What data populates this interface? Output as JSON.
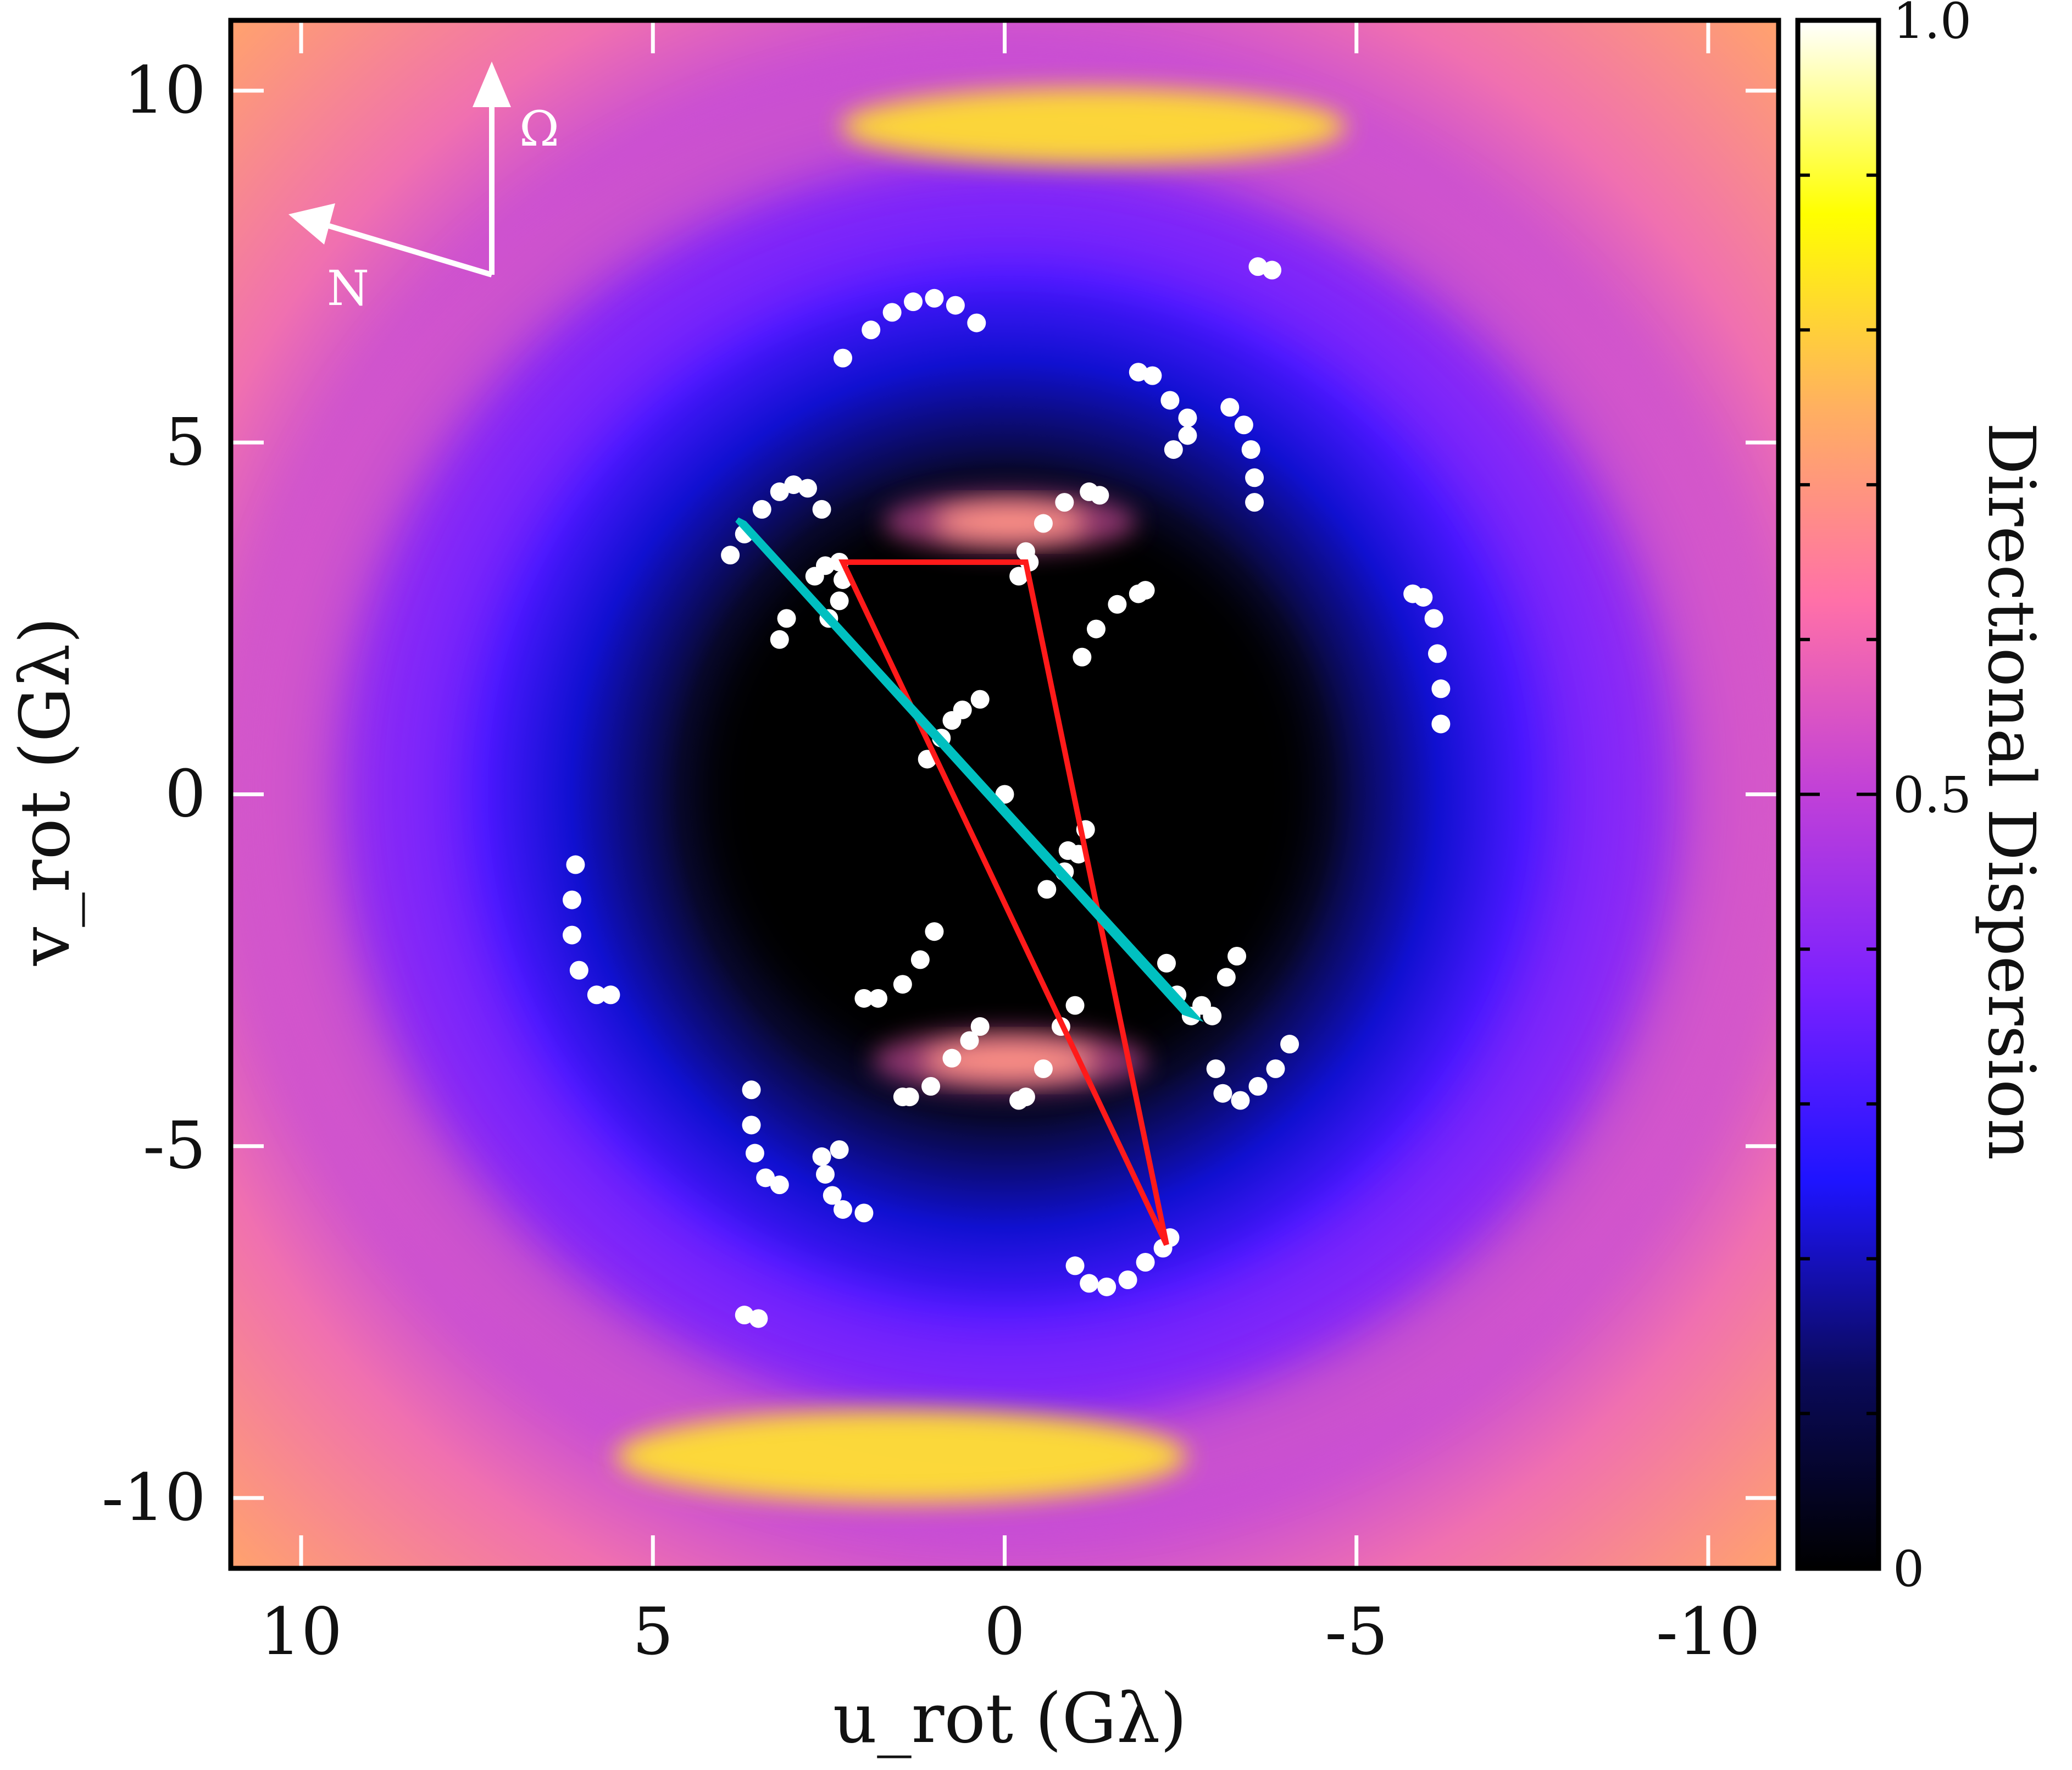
{
  "chart_data": {
    "type": "heatmap",
    "title": "",
    "xlabel": "u_rot (Gλ)",
    "ylabel": "v_rot (Gλ)",
    "xlim": [
      11,
      -11
    ],
    "ylim": [
      -11,
      11
    ],
    "x_ticks": [
      10,
      5,
      0,
      -5,
      -10
    ],
    "y_ticks": [
      10,
      5,
      0,
      -5,
      -10
    ],
    "x_tick_labels": [
      "10",
      "5",
      "0",
      "-5",
      "-10"
    ],
    "y_tick_labels": [
      "10",
      "5",
      "0",
      "-5",
      "-10"
    ],
    "grid": false,
    "colorbar": {
      "label": "Directional Dispersion",
      "range": [
        0,
        1
      ],
      "tick_values": [
        0,
        0.5,
        1.0
      ],
      "tick_labels": [
        "0",
        "0.5",
        "1.0"
      ],
      "colors": [
        "#000000",
        "#0a0a5a",
        "#1e14ff",
        "#7a20ff",
        "#c040d8",
        "#ff70a8",
        "#ffb060",
        "#ffff00",
        "#ffffff"
      ]
    },
    "compass": {
      "north_label": "N",
      "spin_label": "Ω"
    },
    "uv_tracks": [
      [
        [
          2.3,
          6.2
        ],
        [
          1.9,
          6.6
        ],
        [
          1.6,
          6.85
        ],
        [
          1.3,
          7.0
        ],
        [
          1.0,
          7.05
        ],
        [
          0.7,
          6.95
        ],
        [
          0.4,
          6.7
        ]
      ],
      [
        [
          -3.6,
          7.5
        ],
        [
          -3.8,
          7.45
        ]
      ],
      [
        [
          -1.9,
          6.0
        ],
        [
          -2.1,
          5.95
        ],
        [
          -2.35,
          5.6
        ],
        [
          -2.6,
          5.35
        ],
        [
          -2.6,
          5.1
        ],
        [
          -2.4,
          4.9
        ]
      ],
      [
        [
          -3.2,
          5.5
        ],
        [
          -3.4,
          5.25
        ],
        [
          -3.5,
          4.9
        ],
        [
          -3.55,
          4.5
        ],
        [
          -3.55,
          4.15
        ]
      ],
      [
        [
          3.9,
          3.4
        ],
        [
          3.7,
          3.7
        ],
        [
          3.45,
          4.05
        ],
        [
          3.2,
          4.3
        ],
        [
          3.0,
          4.4
        ],
        [
          2.8,
          4.35
        ],
        [
          2.6,
          4.05
        ]
      ],
      [
        [
          -0.3,
          3.45
        ],
        [
          -0.55,
          3.85
        ],
        [
          -0.85,
          4.15
        ],
        [
          -1.2,
          4.3
        ],
        [
          -1.35,
          4.25
        ]
      ],
      [
        [
          2.7,
          3.1
        ],
        [
          2.55,
          3.25
        ],
        [
          2.35,
          3.3
        ],
        [
          2.3,
          3.05
        ],
        [
          2.35,
          2.75
        ],
        [
          2.5,
          2.5
        ]
      ],
      [
        [
          3.2,
          2.2
        ],
        [
          3.1,
          2.5
        ]
      ],
      [
        [
          -0.2,
          3.1
        ],
        [
          -0.35,
          3.3
        ]
      ],
      [
        [
          -1.1,
          1.95
        ],
        [
          -1.3,
          2.35
        ],
        [
          -1.6,
          2.7
        ],
        [
          -2.0,
          2.9
        ],
        [
          -1.9,
          2.85
        ]
      ],
      [
        [
          -5.8,
          2.85
        ],
        [
          -5.95,
          2.8
        ],
        [
          -6.1,
          2.5
        ],
        [
          -6.15,
          2.0
        ],
        [
          -6.2,
          1.5
        ],
        [
          -6.2,
          1.0
        ]
      ],
      [
        [
          1.1,
          0.5
        ],
        [
          0.9,
          0.8
        ],
        [
          0.75,
          1.05
        ],
        [
          0.6,
          1.2
        ],
        [
          0.35,
          1.35
        ]
      ],
      [
        [
          0.0,
          0.0
        ]
      ],
      [
        [
          -0.6,
          -1.35
        ],
        [
          -0.85,
          -1.1
        ],
        [
          -1.05,
          -0.85
        ],
        [
          -1.15,
          -0.5
        ],
        [
          -0.9,
          -0.8
        ]
      ],
      [
        [
          6.1,
          -1.0
        ],
        [
          6.15,
          -1.5
        ],
        [
          6.15,
          -2.0
        ],
        [
          6.05,
          -2.5
        ],
        [
          5.8,
          -2.85
        ],
        [
          5.6,
          -2.85
        ]
      ],
      [
        [
          1.0,
          -1.95
        ],
        [
          1.2,
          -2.35
        ],
        [
          1.45,
          -2.7
        ],
        [
          1.8,
          -2.9
        ],
        [
          2.0,
          -2.9
        ]
      ],
      [
        [
          -2.3,
          -2.4
        ],
        [
          -2.45,
          -2.85
        ],
        [
          -2.65,
          -3.15
        ],
        [
          -2.95,
          -3.15
        ],
        [
          -2.8,
          -3.0
        ]
      ],
      [
        [
          -3.3,
          -2.3
        ],
        [
          -3.15,
          -2.6
        ]
      ],
      [
        [
          -1.0,
          -3.0
        ],
        [
          -0.8,
          -3.3
        ],
        [
          -0.55,
          -3.9
        ],
        [
          -0.3,
          -4.3
        ],
        [
          -0.2,
          -4.35
        ]
      ],
      [
        [
          0.35,
          -3.3
        ],
        [
          0.5,
          -3.5
        ],
        [
          0.75,
          -3.75
        ],
        [
          1.05,
          -4.15
        ],
        [
          1.35,
          -4.3
        ],
        [
          1.45,
          -4.3
        ]
      ],
      [
        [
          -3.0,
          -3.9
        ],
        [
          -3.1,
          -4.25
        ],
        [
          -3.35,
          -4.35
        ],
        [
          -3.6,
          -4.15
        ],
        [
          -3.85,
          -3.9
        ],
        [
          -4.05,
          -3.55
        ]
      ],
      [
        [
          3.6,
          -4.2
        ],
        [
          3.6,
          -4.7
        ],
        [
          3.55,
          -5.1
        ],
        [
          3.4,
          -5.45
        ],
        [
          3.2,
          -5.55
        ]
      ],
      [
        [
          2.6,
          -5.15
        ],
        [
          2.55,
          -5.4
        ],
        [
          2.45,
          -5.7
        ],
        [
          2.3,
          -5.9
        ],
        [
          2.0,
          -5.95
        ],
        [
          2.35,
          -5.05
        ]
      ],
      [
        [
          -1.0,
          -6.7
        ],
        [
          -1.2,
          -6.95
        ],
        [
          -1.45,
          -7.0
        ],
        [
          -1.75,
          -6.9
        ],
        [
          -2.0,
          -6.65
        ],
        [
          -2.25,
          -6.45
        ],
        [
          -2.35,
          -6.3
        ]
      ],
      [
        [
          3.7,
          -7.4
        ],
        [
          3.5,
          -7.45
        ]
      ]
    ],
    "closure_triangles": [
      {
        "color": "#ff1a1a",
        "points": [
          [
            2.3,
            3.3
          ],
          [
            -0.3,
            3.3
          ],
          [
            -2.3,
            -6.4
          ]
        ]
      },
      {
        "color": "#00c0c0",
        "points": [
          [
            3.8,
            3.9
          ],
          [
            -2.55,
            -3.1
          ],
          [
            -2.7,
            -3.15
          ],
          [
            3.7,
            3.85
          ]
        ]
      }
    ]
  }
}
